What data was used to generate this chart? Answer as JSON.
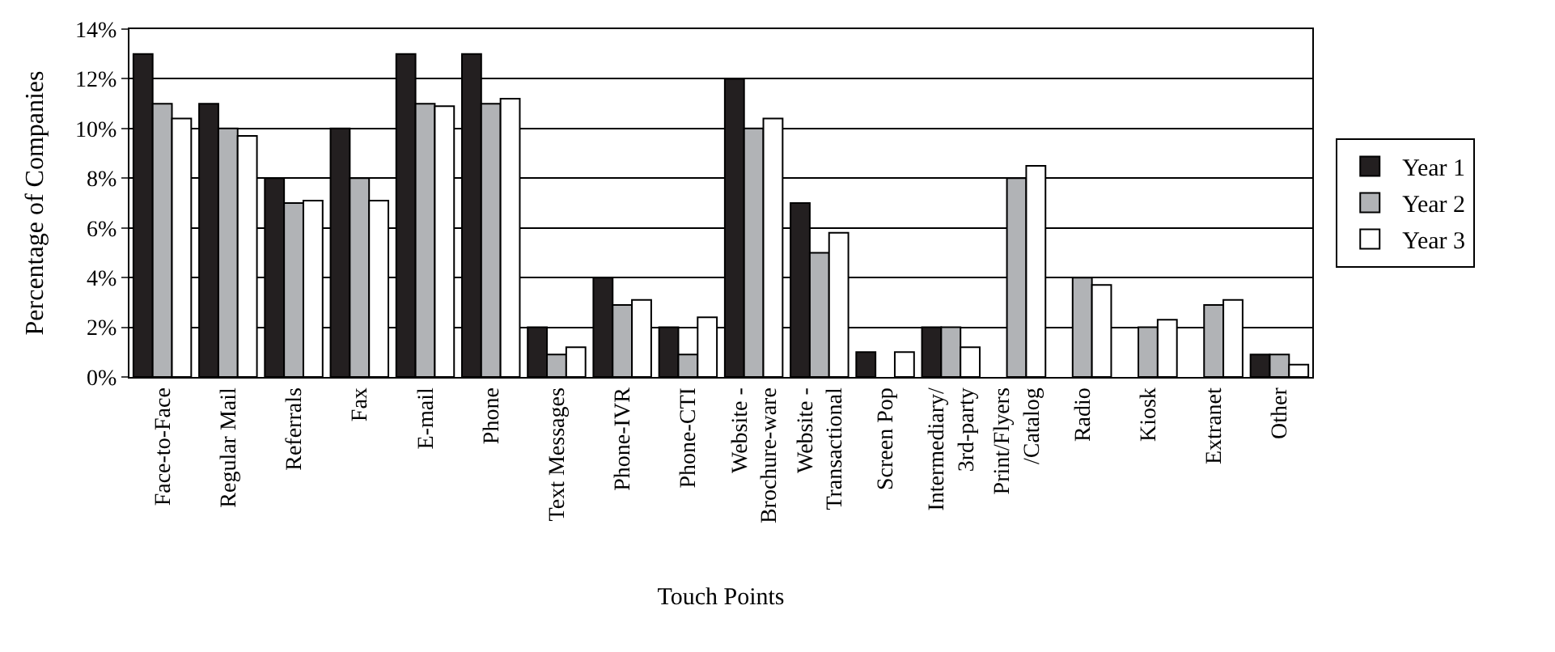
{
  "chart_data": {
    "type": "bar",
    "xlabel": "Touch Points",
    "ylabel": "Percentage of Companies",
    "categories": [
      "Face-to-Face",
      "Regular Mail",
      "Referrals",
      "Fax",
      "E-mail",
      "Phone",
      "Text Messages",
      "Phone-IVR",
      "Phone-CTI",
      "Website -\nBrochure-ware",
      "Website -\nTransactional",
      "Screen Pop",
      "Intermediary/\n3rd-party",
      "Print/Flyers\n/Catalog",
      "Radio",
      "Kiosk",
      "Extranet",
      "Other"
    ],
    "series": [
      {
        "name": "Year 1",
        "color": "#231f20",
        "values": [
          13,
          11,
          8,
          10,
          13,
          13,
          2,
          4,
          2,
          12,
          7,
          1,
          2,
          null,
          null,
          null,
          null,
          0.9
        ]
      },
      {
        "name": "Year 2",
        "color": "#b1b3b6",
        "values": [
          11,
          10,
          7,
          8,
          11,
          11,
          0.9,
          2.9,
          0.9,
          10,
          5,
          null,
          2,
          8,
          4,
          2,
          2.9,
          0.9
        ]
      },
      {
        "name": "Year 3",
        "color": "#ffffff",
        "values": [
          10.4,
          9.7,
          7.1,
          7.1,
          10.9,
          11.2,
          1.2,
          3.1,
          2.4,
          10.4,
          5.8,
          1.0,
          1.2,
          8.5,
          3.7,
          2.3,
          3.1,
          0.5
        ]
      }
    ],
    "ylim": [
      0,
      14
    ],
    "yticks": [
      {
        "value": 0,
        "label": "0%"
      },
      {
        "value": 2,
        "label": "2%"
      },
      {
        "value": 4,
        "label": "4%"
      },
      {
        "value": 6,
        "label": "6%"
      },
      {
        "value": 8,
        "label": "8%"
      },
      {
        "value": 10,
        "label": "10%"
      },
      {
        "value": 12,
        "label": "12%"
      },
      {
        "value": 14,
        "label": "14%"
      }
    ],
    "grid": "y",
    "legend": "right"
  }
}
